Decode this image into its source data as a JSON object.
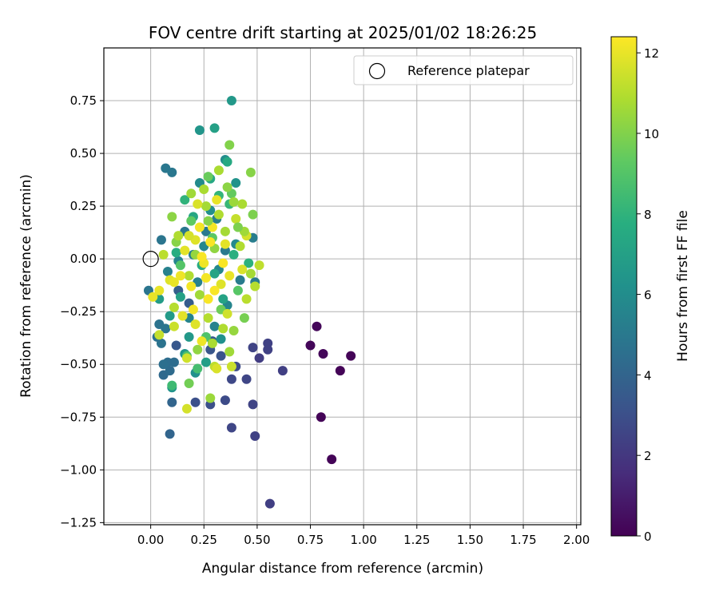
{
  "chart_data": {
    "type": "scatter",
    "title": "FOV centre drift starting at 2025/01/02 18:26:25",
    "xlabel": "Angular distance from reference (arcmin)",
    "ylabel": "Rotation from reference (arcmin)",
    "xlim": [
      -0.22,
      2.02
    ],
    "ylim": [
      -1.26,
      1.0
    ],
    "xticks": [
      0.0,
      0.25,
      0.5,
      0.75,
      1.0,
      1.25,
      1.5,
      1.75,
      2.0
    ],
    "xtick_labels": [
      "0.00",
      "0.25",
      "0.50",
      "0.75",
      "1.00",
      "1.25",
      "1.50",
      "1.75",
      "2.00"
    ],
    "yticks": [
      0.75,
      0.5,
      0.25,
      0.0,
      -0.25,
      -0.5,
      -0.75,
      -1.0,
      -1.25
    ],
    "ytick_labels": [
      "0.75",
      "0.50",
      "0.25",
      "0.00",
      "−0.25",
      "−0.50",
      "−0.75",
      "−1.00",
      "−1.25"
    ],
    "grid": true,
    "legend": {
      "placement": "top-right",
      "entries": [
        "Reference platepar"
      ]
    },
    "colormap": "viridis",
    "colorbar": {
      "label": "Hours from first FF file",
      "range": [
        0,
        12.4
      ],
      "ticks": [
        0,
        2,
        4,
        6,
        8,
        10,
        12
      ],
      "tick_labels": [
        "0",
        "2",
        "4",
        "6",
        "8",
        "10",
        "12"
      ]
    },
    "reference_point": {
      "x": 0.0,
      "y": 0.0
    },
    "marker_colors": {
      "reference_edge": "#000000",
      "grid": "#b0b0b0"
    },
    "series": [
      {
        "name": "Reference platepar",
        "points": [
          [
            0.0,
            0.0
          ]
        ]
      }
    ],
    "points": [
      [
        0.94,
        -0.46,
        0.1
      ],
      [
        0.89,
        -0.53,
        0.1
      ],
      [
        0.85,
        -0.95,
        0.1
      ],
      [
        0.8,
        -0.75,
        0.1
      ],
      [
        0.81,
        -0.45,
        0.2
      ],
      [
        0.78,
        -0.32,
        0.2
      ],
      [
        0.75,
        -0.41,
        0.2
      ],
      [
        0.56,
        -1.16,
        2.3
      ],
      [
        0.62,
        -0.53,
        2.3
      ],
      [
        0.55,
        -0.4,
        2.4
      ],
      [
        0.55,
        -0.43,
        2.4
      ],
      [
        0.51,
        -0.47,
        2.2
      ],
      [
        0.49,
        -0.84,
        2.4
      ],
      [
        0.48,
        -0.69,
        2.5
      ],
      [
        0.48,
        -0.42,
        2.5
      ],
      [
        0.45,
        -0.57,
        2.6
      ],
      [
        0.38,
        -0.8,
        2.6
      ],
      [
        0.38,
        -0.57,
        2.7
      ],
      [
        0.35,
        -0.67,
        2.8
      ],
      [
        0.28,
        -0.69,
        3.0
      ],
      [
        0.21,
        -0.68,
        3.0
      ],
      [
        0.4,
        -0.51,
        2.8
      ],
      [
        0.33,
        -0.46,
        3.2
      ],
      [
        0.28,
        -0.43,
        3.3
      ],
      [
        0.12,
        -0.41,
        3.4
      ],
      [
        0.18,
        -0.21,
        3.6
      ],
      [
        0.29,
        -0.39,
        3.5
      ],
      [
        0.13,
        -0.15,
        3.7
      ],
      [
        0.09,
        -0.83,
        4.0
      ],
      [
        0.1,
        -0.68,
        4.0
      ],
      [
        0.06,
        -0.55,
        4.2
      ],
      [
        0.09,
        -0.53,
        4.3
      ],
      [
        0.08,
        -0.49,
        4.4
      ],
      [
        0.11,
        -0.49,
        4.4
      ],
      [
        0.06,
        -0.5,
        4.5
      ],
      [
        0.03,
        -0.37,
        4.6
      ],
      [
        0.05,
        -0.4,
        4.7
      ],
      [
        0.04,
        -0.31,
        4.7
      ],
      [
        0.07,
        -0.33,
        4.8
      ],
      [
        -0.01,
        -0.15,
        4.8
      ],
      [
        0.05,
        0.09,
        4.8
      ],
      [
        0.07,
        0.43,
        4.9
      ],
      [
        0.1,
        0.41,
        4.9
      ],
      [
        0.16,
        0.13,
        4.9
      ],
      [
        0.26,
        0.13,
        5.0
      ],
      [
        0.35,
        0.04,
        5.0
      ],
      [
        0.42,
        -0.1,
        5.1
      ],
      [
        0.49,
        -0.11,
        5.1
      ],
      [
        0.48,
        0.1,
        5.2
      ],
      [
        0.31,
        0.19,
        5.3
      ],
      [
        0.2,
        0.02,
        5.3
      ],
      [
        0.22,
        -0.11,
        5.4
      ],
      [
        0.08,
        -0.06,
        5.4
      ],
      [
        0.18,
        -0.28,
        5.5
      ],
      [
        0.3,
        -0.32,
        5.5
      ],
      [
        0.36,
        -0.22,
        5.6
      ],
      [
        0.13,
        -0.01,
        5.6
      ],
      [
        0.25,
        0.06,
        5.7
      ],
      [
        0.32,
        -0.05,
        5.7
      ],
      [
        0.4,
        0.07,
        5.8
      ],
      [
        0.23,
        0.36,
        5.9
      ],
      [
        0.35,
        0.47,
        6.0
      ],
      [
        0.28,
        0.23,
        6.1
      ],
      [
        0.4,
        0.36,
        6.3
      ],
      [
        0.23,
        0.61,
        6.4
      ],
      [
        0.38,
        0.75,
        6.6
      ],
      [
        0.3,
        0.62,
        7.0
      ],
      [
        0.33,
        -0.38,
        6.2
      ],
      [
        0.21,
        -0.54,
        6.2
      ],
      [
        0.1,
        -0.61,
        6.3
      ],
      [
        0.16,
        -0.45,
        6.4
      ],
      [
        0.18,
        -0.37,
        6.6
      ],
      [
        0.09,
        -0.27,
        6.7
      ],
      [
        0.04,
        -0.19,
        6.8
      ],
      [
        0.26,
        -0.49,
        6.9
      ],
      [
        0.14,
        -0.18,
        7.0
      ],
      [
        0.34,
        -0.19,
        7.1
      ],
      [
        0.3,
        -0.07,
        7.2
      ],
      [
        0.2,
        0.2,
        7.3
      ],
      [
        0.28,
        0.38,
        7.4
      ],
      [
        0.36,
        0.46,
        7.5
      ],
      [
        0.24,
        -0.03,
        7.6
      ],
      [
        0.12,
        0.03,
        7.7
      ],
      [
        0.39,
        0.02,
        7.8
      ],
      [
        0.46,
        -0.02,
        7.9
      ],
      [
        0.16,
        0.28,
        8.0
      ],
      [
        0.32,
        0.3,
        8.1
      ],
      [
        0.37,
        0.26,
        8.2
      ],
      [
        0.1,
        -0.6,
        8.4
      ],
      [
        0.22,
        -0.52,
        8.6
      ],
      [
        0.17,
        -0.46,
        8.8
      ],
      [
        0.26,
        -0.37,
        8.9
      ],
      [
        0.14,
        -0.03,
        9.0
      ],
      [
        0.41,
        -0.15,
        9.1
      ],
      [
        0.29,
        0.1,
        9.2
      ],
      [
        0.19,
        0.18,
        9.3
      ],
      [
        0.38,
        0.31,
        9.4
      ],
      [
        0.27,
        0.39,
        9.5
      ],
      [
        0.33,
        -0.24,
        9.6
      ],
      [
        0.18,
        -0.59,
        9.7
      ],
      [
        0.44,
        -0.28,
        9.8
      ],
      [
        0.48,
        0.21,
        9.9
      ],
      [
        0.37,
        0.54,
        10.0
      ],
      [
        0.47,
        0.41,
        10.1
      ],
      [
        0.12,
        0.08,
        10.1
      ],
      [
        0.1,
        0.2,
        10.2
      ],
      [
        0.3,
        0.05,
        10.3
      ],
      [
        0.21,
        0.02,
        10.4
      ],
      [
        0.39,
        -0.34,
        10.4
      ],
      [
        0.28,
        -0.66,
        10.5
      ],
      [
        0.37,
        -0.44,
        10.6
      ],
      [
        0.23,
        -0.17,
        10.6
      ],
      [
        0.26,
        0.25,
        10.7
      ],
      [
        0.35,
        0.13,
        10.7
      ],
      [
        0.43,
        0.26,
        10.8
      ],
      [
        0.32,
        0.42,
        10.8
      ],
      [
        0.18,
        -0.08,
        10.9
      ],
      [
        0.42,
        0.06,
        10.9
      ],
      [
        0.27,
        -0.28,
        11.0
      ],
      [
        0.11,
        -0.23,
        11.0
      ],
      [
        0.45,
        -0.19,
        11.1
      ],
      [
        0.3,
        -0.51,
        11.2
      ],
      [
        0.04,
        -0.36,
        11.3
      ],
      [
        0.11,
        -0.32,
        11.4
      ],
      [
        0.17,
        -0.71,
        11.6
      ],
      [
        0.31,
        -0.52,
        11.7
      ],
      [
        0.38,
        -0.51,
        11.4
      ],
      [
        0.17,
        -0.47,
        11.5
      ],
      [
        0.09,
        -0.1,
        11.8
      ],
      [
        0.04,
        -0.15,
        12.0
      ],
      [
        0.01,
        -0.18,
        12.0
      ],
      [
        0.21,
        0.09,
        11.8
      ],
      [
        0.25,
        -0.02,
        12.1
      ],
      [
        0.29,
        0.15,
        12.2
      ],
      [
        0.35,
        0.07,
        11.9
      ],
      [
        0.45,
        0.11,
        11.6
      ],
      [
        0.51,
        -0.03,
        11.2
      ],
      [
        0.49,
        -0.13,
        11.0
      ],
      [
        0.22,
        0.26,
        11.7
      ],
      [
        0.31,
        0.28,
        12.0
      ],
      [
        0.19,
        -0.13,
        12.2
      ],
      [
        0.27,
        -0.19,
        12.3
      ],
      [
        0.33,
        -0.12,
        11.8
      ],
      [
        0.14,
        -0.08,
        12.1
      ],
      [
        0.24,
        0.01,
        12.3
      ],
      [
        0.36,
        -0.26,
        11.5
      ],
      [
        0.2,
        -0.24,
        12.2
      ],
      [
        0.28,
        0.08,
        12.3
      ],
      [
        0.16,
        0.04,
        11.9
      ],
      [
        0.4,
        0.19,
        11.3
      ],
      [
        0.43,
        -0.05,
        11.7
      ],
      [
        0.23,
        0.15,
        12.2
      ],
      [
        0.34,
        -0.02,
        12.3
      ],
      [
        0.26,
        -0.09,
        12.2
      ],
      [
        0.11,
        -0.11,
        12.0
      ],
      [
        0.18,
        0.11,
        11.6
      ],
      [
        0.3,
        -0.15,
        12.3
      ],
      [
        0.37,
        -0.08,
        12.0
      ],
      [
        0.21,
        -0.31,
        11.8
      ],
      [
        0.24,
        -0.39,
        12.1
      ],
      [
        0.15,
        -0.27,
        11.9
      ],
      [
        0.32,
        0.21,
        10.9
      ],
      [
        0.39,
        0.27,
        10.5
      ],
      [
        0.25,
        0.33,
        10.8
      ],
      [
        0.44,
        0.13,
        10.6
      ],
      [
        0.47,
        -0.07,
        10.7
      ],
      [
        0.13,
        0.11,
        10.9
      ],
      [
        0.06,
        0.02,
        11.1
      ],
      [
        0.29,
        -0.4,
        10.8
      ],
      [
        0.22,
        -0.43,
        10.3
      ],
      [
        0.34,
        -0.33,
        10.9
      ],
      [
        0.19,
        0.31,
        10.6
      ],
      [
        0.36,
        0.34,
        10.2
      ],
      [
        0.41,
        0.15,
        9.9
      ],
      [
        0.27,
        0.18,
        10.1
      ]
    ]
  }
}
